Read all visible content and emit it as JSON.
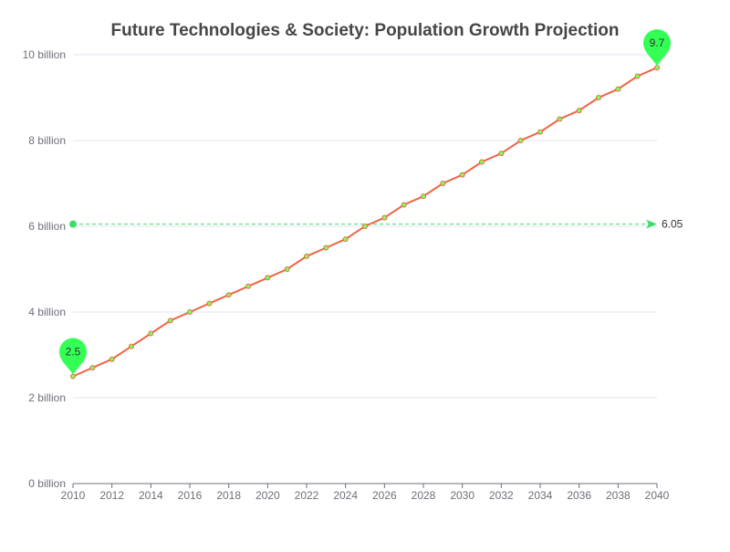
{
  "chart_data": {
    "type": "line",
    "title": "Future Technologies & Society: Population Growth Projection",
    "xlabel": "",
    "ylabel": "",
    "y_unit_suffix": " billion",
    "x": [
      2010,
      2011,
      2012,
      2013,
      2014,
      2015,
      2016,
      2017,
      2018,
      2019,
      2020,
      2021,
      2022,
      2023,
      2024,
      2025,
      2026,
      2027,
      2028,
      2029,
      2030,
      2031,
      2032,
      2033,
      2034,
      2035,
      2036,
      2037,
      2038,
      2039,
      2040
    ],
    "x_tick_labels": [
      "2010",
      "2012",
      "2014",
      "2016",
      "2018",
      "2020",
      "2022",
      "2024",
      "2026",
      "2028",
      "2030",
      "2032",
      "2034",
      "2036",
      "2038",
      "2040"
    ],
    "y_tick_labels": [
      "0 billion",
      "2 billion",
      "4 billion",
      "6 billion",
      "8 billion",
      "10 billion"
    ],
    "xlim": [
      2010,
      2040
    ],
    "ylim": [
      0,
      10
    ],
    "y_ticks": [
      0,
      2,
      4,
      6,
      8,
      10
    ],
    "grid": true,
    "series": [
      {
        "values": [
          2.5,
          2.7,
          2.9,
          3.2,
          3.5,
          3.8,
          4.0,
          4.2,
          4.4,
          4.6,
          4.8,
          5.0,
          5.3,
          5.5,
          5.7,
          6.0,
          6.2,
          6.5,
          6.7,
          7.0,
          7.2,
          7.5,
          7.7,
          8.0,
          8.2,
          8.5,
          8.7,
          9.0,
          9.2,
          9.5,
          9.7
        ],
        "line_color": "#ee6644",
        "point_color": "#7cff5a"
      }
    ],
    "mark_points": [
      {
        "label": "2.5",
        "x": 2010,
        "value": 2.5
      },
      {
        "label": "9.7",
        "x": 2040,
        "value": 9.7
      }
    ],
    "mark_line": {
      "label": "6.05",
      "value": 6.05,
      "color": "#3ddc6a"
    },
    "pin_color": "#33ff55"
  }
}
